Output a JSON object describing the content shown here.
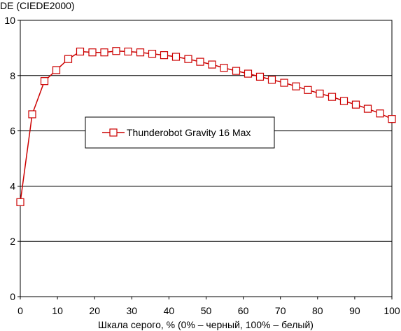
{
  "chart_data": {
    "type": "line",
    "title": "",
    "ylabel": "DE (CIEDE2000)",
    "xlabel": "Шкала серого, % (0% – черный, 100% – белый)",
    "xlim": [
      0,
      100
    ],
    "ylim": [
      0,
      10
    ],
    "xticks": [
      "0",
      "10",
      "20",
      "30",
      "40",
      "50",
      "60",
      "70",
      "80",
      "90",
      "100"
    ],
    "yticks": [
      "0",
      "2",
      "4",
      "6",
      "8",
      "10"
    ],
    "grid": "horizontal",
    "legend_position": "center-left",
    "series": [
      {
        "name": "Thunderobot Gravity 16 Max",
        "color": "#cc0000",
        "marker": "open-square",
        "x": [
          0,
          3.2,
          6.5,
          9.7,
          12.9,
          16.1,
          19.4,
          22.6,
          25.8,
          29.0,
          32.3,
          35.5,
          38.7,
          41.9,
          45.2,
          48.4,
          51.6,
          54.8,
          58.1,
          61.3,
          64.5,
          67.7,
          71.0,
          74.2,
          77.4,
          80.6,
          83.9,
          87.1,
          90.3,
          93.5,
          96.8,
          100
        ],
        "y": [
          3.42,
          6.6,
          7.8,
          8.2,
          8.6,
          8.87,
          8.84,
          8.84,
          8.89,
          8.87,
          8.84,
          8.79,
          8.74,
          8.68,
          8.6,
          8.5,
          8.4,
          8.28,
          8.17,
          8.07,
          7.96,
          7.85,
          7.74,
          7.61,
          7.48,
          7.35,
          7.23,
          7.08,
          6.95,
          6.8,
          6.63,
          6.43
        ]
      }
    ]
  }
}
